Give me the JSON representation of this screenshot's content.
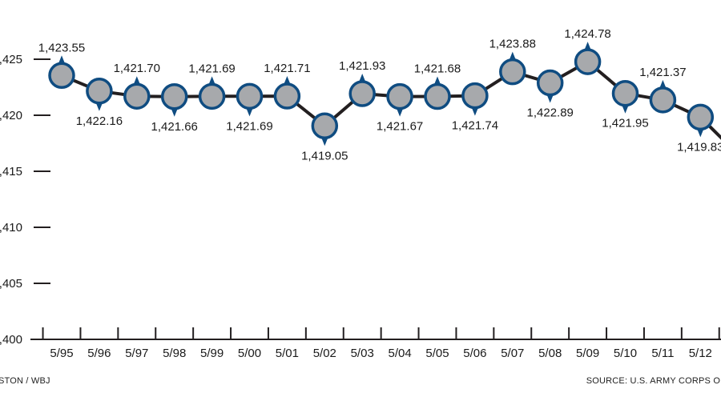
{
  "chart_data": {
    "type": "line",
    "title": "",
    "xlabel": "",
    "ylabel": "",
    "categories": [
      "5/95",
      "5/96",
      "5/97",
      "5/98",
      "5/99",
      "5/00",
      "5/01",
      "5/02",
      "5/03",
      "5/04",
      "5/05",
      "5/06",
      "5/07",
      "5/08",
      "5/09",
      "5/10",
      "5/11",
      "5/12"
    ],
    "values": [
      1423.55,
      1422.16,
      1421.7,
      1421.66,
      1421.69,
      1421.69,
      1421.71,
      1419.05,
      1421.93,
      1421.67,
      1421.68,
      1421.74,
      1423.88,
      1422.89,
      1424.78,
      1421.95,
      1421.37,
      1419.83
    ],
    "value_labels": [
      "1,423.55",
      "1,422.16",
      "1,421.70",
      "1,421.66",
      "1,421.69",
      "1,421.69",
      "1,421.71",
      "1,419.05",
      "1,421.93",
      "1,421.67",
      "1,421.68",
      "1,421.74",
      "1,423.88",
      "1,422.89",
      "1,424.78",
      "1,421.95",
      "1,421.37",
      "1,419.83"
    ],
    "label_position": [
      "above",
      "below",
      "above",
      "below",
      "above",
      "below",
      "above",
      "below",
      "above",
      "below",
      "above",
      "below",
      "above",
      "below",
      "above",
      "below",
      "above",
      "below"
    ],
    "yticks": [
      1400,
      1405,
      1410,
      1415,
      1420,
      1425
    ],
    "ytick_labels": [
      ",400",
      ",405",
      ",410",
      ",415",
      ",420",
      ",425"
    ],
    "ylim": [
      1400,
      1425
    ],
    "trailing_next_value": 1416.5,
    "colors": {
      "line": "#231f20",
      "marker_fill": "#a7a9ac",
      "marker_ring": "#0f4c81",
      "axis": "#231f20"
    }
  },
  "credits": {
    "left": "STON / WBJ",
    "right": "SOURCE: U.S. ARMY CORPS OF"
  }
}
